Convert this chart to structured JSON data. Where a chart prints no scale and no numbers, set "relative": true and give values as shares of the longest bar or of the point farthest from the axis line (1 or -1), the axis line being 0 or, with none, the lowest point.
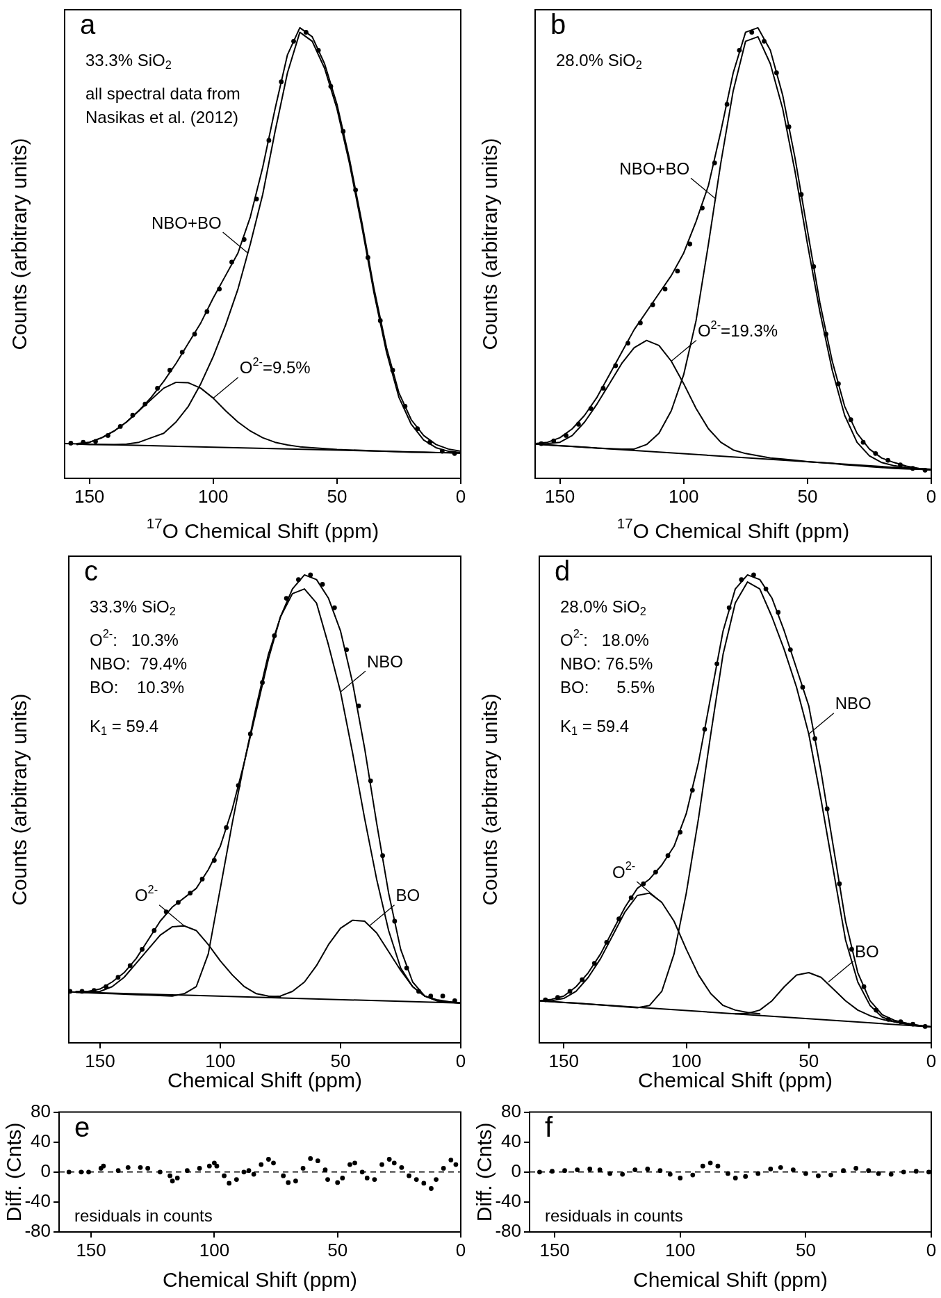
{
  "chart_data": [
    {
      "type": "line",
      "relative": true,
      "xlim": [
        160,
        0
      ],
      "xticks": [
        150,
        100,
        50,
        0
      ],
      "xlabel": "$^{17}$O Chemical Shift (ppm)",
      "ylabel": "Counts (arbitrary units)",
      "annotations": [
        "a",
        "33.3% SiO$_{2}$",
        "all spectral data from",
        "Nasikas et al. (2012)",
        {
          "text": "NBO+BO",
          "x": 86,
          "y": 0.5
        },
        {
          "text": "O$^{2-}$=9.5%",
          "x": 100,
          "y": 0.178
        }
      ],
      "x": [
        155,
        150,
        145,
        140,
        135,
        130,
        125,
        120,
        115,
        110,
        105,
        100,
        95,
        90,
        85,
        80,
        75,
        70,
        65,
        60,
        55,
        50,
        45,
        40,
        35,
        30,
        25,
        20,
        15,
        10,
        5,
        0
      ],
      "series": [
        {
          "type": "scatter",
          "marker": "circle",
          "color": "#000000",
          "x": [
            157.5,
            152.5,
            147.5,
            142.5,
            137.5,
            132.5,
            127.5,
            122.5,
            117.5,
            112.5,
            107.5,
            102.5,
            97.5,
            92.5,
            87.5,
            82.5,
            77.5,
            72.5,
            67.5,
            62.5,
            57.5,
            52.5,
            47.5,
            42.5,
            37.5,
            32.5,
            27.5,
            22.5,
            17.5,
            12.5,
            7.5,
            2.5
          ],
          "values": [
            0.078,
            0.08,
            0.082,
            0.095,
            0.115,
            0.14,
            0.165,
            0.2,
            0.24,
            0.28,
            0.32,
            0.37,
            0.42,
            0.48,
            0.53,
            0.62,
            0.75,
            0.88,
            0.97,
            0.99,
            0.95,
            0.87,
            0.77,
            0.64,
            0.49,
            0.35,
            0.24,
            0.16,
            0.11,
            0.08,
            0.06,
            0.055
          ]
        },
        {
          "color": "#000000",
          "values": [
            0.077,
            0.08,
            0.09,
            0.105,
            0.125,
            0.15,
            0.18,
            0.215,
            0.255,
            0.3,
            0.345,
            0.4,
            0.45,
            0.5,
            0.58,
            0.69,
            0.82,
            0.94,
            1.0,
            0.98,
            0.92,
            0.83,
            0.71,
            0.57,
            0.42,
            0.29,
            0.19,
            0.13,
            0.095,
            0.075,
            0.065,
            0.06
          ]
        },
        {
          "color": "#000000",
          "values": [
            0.076,
            0.075,
            0.075,
            0.075,
            0.076,
            0.08,
            0.09,
            0.1,
            0.125,
            0.16,
            0.21,
            0.27,
            0.34,
            0.42,
            0.52,
            0.63,
            0.77,
            0.9,
            0.99,
            0.97,
            0.91,
            0.82,
            0.7,
            0.56,
            0.41,
            0.28,
            0.18,
            0.12,
            0.085,
            0.068,
            0.06,
            0.057
          ]
        },
        {
          "color": "#000000",
          "values": [
            0.075,
            0.08,
            0.09,
            0.105,
            0.125,
            0.15,
            0.175,
            0.2,
            0.213,
            0.212,
            0.2,
            0.178,
            0.15,
            0.125,
            0.105,
            0.09,
            0.08,
            0.074,
            0.07,
            0.068,
            0.066,
            0.064,
            0.063,
            0.062,
            0.061,
            0.06,
            0.059,
            0.058,
            0.058,
            0.057,
            0.057,
            0.056
          ]
        },
        {
          "color": "#000000",
          "x": [
            160,
            0
          ],
          "values": [
            0.077,
            0.056
          ]
        }
      ]
    },
    {
      "type": "line",
      "relative": true,
      "xlim": [
        160,
        0
      ],
      "xticks": [
        150,
        100,
        50,
        0
      ],
      "xlabel": "$^{17}$O Chemical Shift (ppm)",
      "ylabel": "Counts (arbitrary units)",
      "annotations": [
        "b",
        "28.0% SiO$_{2}$",
        {
          "text": "NBO+BO",
          "x": 87,
          "y": 0.62
        },
        {
          "text": "O$^{2-}$=19.3%",
          "x": 105,
          "y": 0.26
        }
      ],
      "x": [
        160,
        155,
        150,
        145,
        140,
        135,
        130,
        125,
        120,
        115,
        110,
        105,
        100,
        95,
        90,
        85,
        80,
        75,
        70,
        65,
        60,
        55,
        50,
        45,
        40,
        35,
        30,
        25,
        20,
        15,
        10,
        5,
        0
      ],
      "series": [
        {
          "type": "scatter",
          "marker": "circle",
          "color": "#000000",
          "x": [
            157.5,
            152.5,
            147.5,
            142.5,
            137.5,
            132.5,
            127.5,
            122.5,
            117.5,
            112.5,
            107.5,
            102.5,
            97.5,
            92.5,
            87.5,
            82.5,
            77.5,
            72.5,
            67.5,
            62.5,
            57.5,
            52.5,
            47.5,
            42.5,
            37.5,
            32.5,
            27.5,
            22.5,
            17.5,
            12.5,
            7.5,
            2.5
          ],
          "values": [
            0.077,
            0.083,
            0.095,
            0.12,
            0.155,
            0.2,
            0.25,
            0.3,
            0.345,
            0.385,
            0.42,
            0.46,
            0.52,
            0.6,
            0.7,
            0.83,
            0.95,
            0.99,
            0.97,
            0.9,
            0.78,
            0.63,
            0.47,
            0.32,
            0.21,
            0.13,
            0.08,
            0.055,
            0.04,
            0.03,
            0.022,
            0.018
          ]
        },
        {
          "color": "#000000",
          "values": [
            0.077,
            0.08,
            0.09,
            0.11,
            0.14,
            0.18,
            0.23,
            0.28,
            0.33,
            0.37,
            0.41,
            0.45,
            0.5,
            0.57,
            0.65,
            0.77,
            0.9,
            0.99,
            1.0,
            0.95,
            0.85,
            0.71,
            0.55,
            0.39,
            0.26,
            0.16,
            0.1,
            0.065,
            0.045,
            0.035,
            0.027,
            0.022,
            0.02
          ]
        },
        {
          "color": "#000000",
          "values": [
            0.076,
            0.074,
            0.072,
            0.071,
            0.069,
            0.067,
            0.066,
            0.065,
            0.065,
            0.075,
            0.1,
            0.15,
            0.23,
            0.35,
            0.52,
            0.7,
            0.86,
            0.97,
            0.98,
            0.92,
            0.82,
            0.68,
            0.52,
            0.37,
            0.24,
            0.14,
            0.08,
            0.05,
            0.035,
            0.028,
            0.024,
            0.021,
            0.019
          ]
        },
        {
          "color": "#000000",
          "values": [
            0.076,
            0.077,
            0.08,
            0.095,
            0.125,
            0.165,
            0.21,
            0.255,
            0.29,
            0.306,
            0.295,
            0.26,
            0.21,
            0.155,
            0.11,
            0.08,
            0.063,
            0.055,
            0.05,
            0.045,
            0.043,
            0.04,
            0.037,
            0.035,
            0.033,
            0.03,
            0.028,
            0.026,
            0.024,
            0.022,
            0.021,
            0.02,
            0.019
          ]
        },
        {
          "color": "#000000",
          "x": [
            160,
            0
          ],
          "values": [
            0.076,
            0.019
          ]
        }
      ]
    },
    {
      "type": "line",
      "relative": true,
      "xlim": [
        163,
        0
      ],
      "xticks": [
        150,
        100,
        50,
        0
      ],
      "xlabel": "Chemical Shift (ppm)",
      "ylabel": "Counts (arbitrary units)",
      "annotations": [
        "c",
        "33.3% SiO$_{2}$",
        "O$^{2-}$:   10.3%",
        "NBO:  79.4%",
        "BO:    10.3%",
        "K$_{1}$ = 59.4",
        {
          "text": "O$^{2-}$",
          "x": 115,
          "y": 0.25
        },
        {
          "text": "NBO",
          "x": 50,
          "y": 0.75
        },
        {
          "text": "BO",
          "x": 38,
          "y": 0.25
        }
      ],
      "x": [
        160,
        155,
        150,
        145,
        140,
        135,
        130,
        125,
        120,
        115,
        110,
        105,
        100,
        95,
        90,
        85,
        80,
        75,
        70,
        65,
        60,
        55,
        50,
        45,
        40,
        35,
        30,
        25,
        20,
        15,
        10,
        5,
        0
      ],
      "series": [
        {
          "type": "scatter",
          "marker": "circle",
          "color": "#000000",
          "x": [
            162.5,
            157.5,
            152.5,
            147.5,
            142.5,
            137.5,
            132.5,
            127.5,
            122.5,
            117.5,
            112.5,
            107.5,
            102.5,
            97.5,
            92.5,
            87.5,
            82.5,
            77.5,
            72.5,
            67.5,
            62.5,
            57.5,
            52.5,
            47.5,
            42.5,
            37.5,
            32.5,
            27.5,
            22.5,
            17.5,
            12.5,
            7.5,
            2.5
          ],
          "values": [
            0.11,
            0.11,
            0.112,
            0.12,
            0.14,
            0.165,
            0.2,
            0.24,
            0.28,
            0.3,
            0.32,
            0.35,
            0.39,
            0.46,
            0.55,
            0.66,
            0.77,
            0.87,
            0.95,
            0.99,
            1.0,
            0.98,
            0.93,
            0.84,
            0.72,
            0.56,
            0.4,
            0.26,
            0.16,
            0.11,
            0.1,
            0.1,
            0.09
          ]
        },
        {
          "color": "#000000",
          "values": [
            0.11,
            0.11,
            0.115,
            0.13,
            0.15,
            0.18,
            0.22,
            0.26,
            0.29,
            0.31,
            0.33,
            0.37,
            0.42,
            0.5,
            0.6,
            0.71,
            0.82,
            0.91,
            0.97,
            1.0,
            0.99,
            0.95,
            0.88,
            0.77,
            0.63,
            0.47,
            0.32,
            0.2,
            0.13,
            0.1,
            0.09,
            0.087,
            0.085
          ]
        },
        {
          "color": "#000000",
          "values": [
            0.108,
            0.107,
            0.106,
            0.105,
            0.104,
            0.103,
            0.102,
            0.101,
            0.1,
            0.105,
            0.12,
            0.19,
            0.33,
            0.47,
            0.6,
            0.72,
            0.83,
            0.91,
            0.96,
            0.97,
            0.94,
            0.85,
            0.75,
            0.62,
            0.48,
            0.35,
            0.24,
            0.16,
            0.12,
            0.1,
            0.09,
            0.087,
            0.085
          ]
        },
        {
          "color": "#000000",
          "x": [
            160,
            155,
            150,
            145,
            140,
            135,
            130,
            125,
            120,
            115,
            110,
            105,
            100,
            95,
            90,
            85,
            80,
            75
          ],
          "values": [
            0.108,
            0.108,
            0.11,
            0.12,
            0.14,
            0.17,
            0.2,
            0.23,
            0.248,
            0.25,
            0.24,
            0.21,
            0.175,
            0.145,
            0.12,
            0.105,
            0.1,
            0.098
          ]
        },
        {
          "color": "#000000",
          "x": [
            80,
            75,
            70,
            65,
            60,
            55,
            50,
            45,
            40,
            35,
            30,
            25,
            20,
            15,
            10,
            5,
            0
          ],
          "values": [
            0.098,
            0.1,
            0.11,
            0.13,
            0.165,
            0.21,
            0.245,
            0.262,
            0.26,
            0.235,
            0.195,
            0.155,
            0.12,
            0.1,
            0.092,
            0.088,
            0.085
          ]
        },
        {
          "color": "#000000",
          "x": [
            163,
            0
          ],
          "values": [
            0.109,
            0.085
          ]
        }
      ]
    },
    {
      "type": "line",
      "relative": true,
      "xlim": [
        160,
        0
      ],
      "xticks": [
        150,
        100,
        50,
        0
      ],
      "xlabel": "Chemical Shift (ppm)",
      "ylabel": "Counts (arbitrary units)",
      "annotations": [
        "d",
        "28.0% SiO$_{2}$",
        "O$^{2-}$:   18.0%",
        "NBO: 76.5%",
        "BO:      5.5%",
        "K$_{1}$ = 59.4",
        {
          "text": "O$^{2-}$",
          "x": 110,
          "y": 0.3
        },
        {
          "text": "NBO",
          "x": 50,
          "y": 0.66
        },
        {
          "text": "BO",
          "x": 42,
          "y": 0.13
        }
      ],
      "x": [
        160,
        155,
        150,
        145,
        140,
        135,
        130,
        125,
        120,
        115,
        110,
        105,
        100,
        95,
        90,
        85,
        80,
        75,
        70,
        65,
        60,
        55,
        50,
        45,
        40,
        35,
        30,
        25,
        20,
        15,
        10,
        5,
        0
      ],
      "series": [
        {
          "type": "scatter",
          "marker": "circle",
          "color": "#000000",
          "x": [
            157.5,
            152.5,
            147.5,
            142.5,
            137.5,
            132.5,
            127.5,
            122.5,
            117.5,
            112.5,
            107.5,
            102.5,
            97.5,
            92.5,
            87.5,
            82.5,
            77.5,
            72.5,
            67.5,
            62.5,
            57.5,
            52.5,
            47.5,
            42.5,
            37.5,
            32.5,
            27.5,
            22.5,
            17.5,
            12.5,
            7.5,
            2.5
          ],
          "values": [
            0.092,
            0.097,
            0.11,
            0.135,
            0.17,
            0.215,
            0.265,
            0.31,
            0.34,
            0.365,
            0.4,
            0.45,
            0.54,
            0.67,
            0.81,
            0.93,
            0.99,
            1.0,
            0.97,
            0.92,
            0.84,
            0.76,
            0.65,
            0.5,
            0.34,
            0.2,
            0.12,
            0.07,
            0.05,
            0.045,
            0.04,
            0.035
          ]
        },
        {
          "color": "#000000",
          "values": [
            0.09,
            0.093,
            0.1,
            0.12,
            0.15,
            0.19,
            0.24,
            0.29,
            0.33,
            0.35,
            0.38,
            0.42,
            0.49,
            0.6,
            0.74,
            0.88,
            0.97,
            1.0,
            0.99,
            0.95,
            0.88,
            0.8,
            0.72,
            0.58,
            0.42,
            0.26,
            0.15,
            0.09,
            0.06,
            0.048,
            0.042,
            0.037,
            0.034
          ]
        },
        {
          "color": "#000000",
          "values": [
            0.09,
            0.088,
            0.086,
            0.085,
            0.083,
            0.081,
            0.079,
            0.077,
            0.075,
            0.08,
            0.11,
            0.19,
            0.32,
            0.48,
            0.66,
            0.83,
            0.94,
            0.985,
            0.97,
            0.91,
            0.84,
            0.76,
            0.66,
            0.52,
            0.37,
            0.22,
            0.13,
            0.08,
            0.055,
            0.045,
            0.04,
            0.036,
            0.034
          ]
        },
        {
          "color": "#000000",
          "x": [
            160,
            155,
            150,
            145,
            140,
            135,
            130,
            125,
            120,
            115,
            110,
            105,
            100,
            95,
            90,
            85,
            80,
            75,
            70
          ],
          "values": [
            0.09,
            0.09,
            0.095,
            0.11,
            0.14,
            0.18,
            0.23,
            0.28,
            0.315,
            0.32,
            0.3,
            0.26,
            0.2,
            0.145,
            0.105,
            0.08,
            0.07,
            0.065,
            0.062
          ]
        },
        {
          "color": "#000000",
          "x": [
            80,
            75,
            70,
            65,
            60,
            55,
            50,
            45,
            40,
            35,
            30,
            25,
            20,
            15,
            10,
            5,
            0
          ],
          "values": [
            0.062,
            0.063,
            0.07,
            0.09,
            0.12,
            0.145,
            0.15,
            0.14,
            0.115,
            0.09,
            0.07,
            0.058,
            0.05,
            0.045,
            0.04,
            0.037,
            0.034
          ]
        },
        {
          "color": "#000000",
          "x": [
            160,
            0
          ],
          "values": [
            0.09,
            0.034
          ]
        }
      ]
    },
    {
      "type": "scatter",
      "xlim": [
        163,
        0
      ],
      "xticks": [
        150,
        100,
        50,
        0
      ],
      "ylim": [
        -80,
        80
      ],
      "yticks": [
        -80,
        -40,
        0,
        40,
        80
      ],
      "xlabel": "Chemical Shift (ppm)",
      "ylabel": "Diff. (Cnts)",
      "annotations": [
        "e",
        "residuals in counts"
      ],
      "ref_lines": [
        {
          "axis": "y",
          "value": 0,
          "line_style": "dashed",
          "color": "#000000"
        }
      ],
      "series": [
        {
          "marker": "circle",
          "color": "#000000",
          "x": [
            159,
            154,
            151,
            146,
            145,
            139,
            135,
            130,
            127,
            122,
            118,
            117,
            115,
            111,
            106,
            102,
            100,
            99,
            96,
            94,
            91,
            88,
            86,
            84,
            81,
            78,
            76,
            72,
            70,
            67,
            64,
            61,
            58,
            55,
            54,
            50,
            48,
            45,
            43,
            40,
            38,
            35,
            32,
            29,
            27,
            24,
            21,
            18,
            15,
            12,
            10,
            7,
            4,
            2
          ],
          "values": [
            0,
            0,
            0,
            5,
            8,
            2,
            6,
            6,
            5,
            0,
            -5,
            -12,
            -8,
            2,
            5,
            8,
            12,
            8,
            -5,
            -15,
            -10,
            0,
            2,
            -3,
            10,
            17,
            12,
            -5,
            -14,
            -12,
            5,
            18,
            15,
            3,
            -10,
            -14,
            -8,
            10,
            12,
            0,
            -8,
            -10,
            10,
            17,
            12,
            6,
            -5,
            -10,
            -15,
            -22,
            -10,
            5,
            16,
            10
          ]
        }
      ]
    },
    {
      "type": "scatter",
      "xlim": [
        160,
        0
      ],
      "xticks": [
        150,
        100,
        50,
        0
      ],
      "ylim": [
        -80,
        80
      ],
      "yticks": [
        -80,
        -40,
        0,
        40,
        80
      ],
      "xlabel": "Chemical Shift (ppm)",
      "ylabel": "Diff. (Cnts)",
      "annotations": [
        "f",
        "residuals in counts"
      ],
      "ref_lines": [
        {
          "axis": "y",
          "value": 0,
          "line_style": "dashed",
          "color": "#000000"
        }
      ],
      "series": [
        {
          "marker": "circle",
          "color": "#000000",
          "x": [
            156,
            151,
            146,
            141,
            136,
            132,
            128,
            123,
            118,
            113,
            108,
            104,
            100,
            95,
            91,
            88,
            85,
            81,
            78,
            74,
            69,
            64,
            60,
            55,
            50,
            45,
            40,
            35,
            30,
            25,
            21,
            16,
            11,
            6,
            1
          ],
          "values": [
            0,
            1,
            2,
            3,
            4,
            3,
            -2,
            -3,
            3,
            4,
            2,
            -3,
            -8,
            -4,
            8,
            12,
            8,
            -2,
            -8,
            -6,
            -2,
            4,
            6,
            3,
            -2,
            -5,
            -4,
            2,
            5,
            2,
            -2,
            -3,
            0,
            1,
            0
          ]
        }
      ]
    }
  ]
}
